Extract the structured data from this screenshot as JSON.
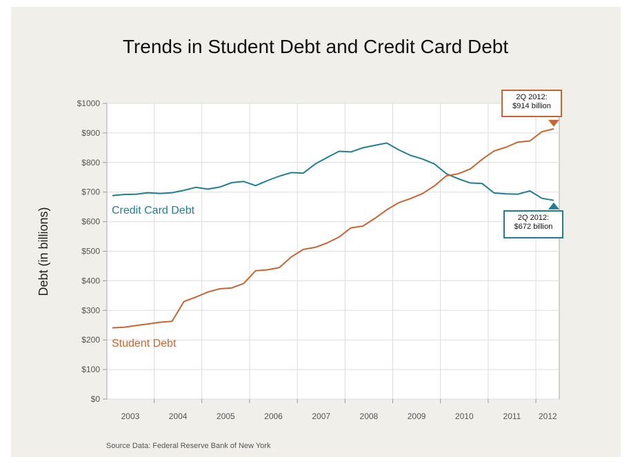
{
  "chart_data": {
    "type": "line",
    "title": "Trends in Student Debt and Credit Card Debt",
    "ylabel": "Debt (in billions)",
    "source": "Source Data: Federal Reserve Bank of New York",
    "ylim": [
      0,
      1000
    ],
    "y_ticks": [
      "$0",
      "$100",
      "$200",
      "$300",
      "$400",
      "$500",
      "$600",
      "$700",
      "$800",
      "$900",
      "$1000"
    ],
    "y_tick_values": [
      0,
      100,
      200,
      300,
      400,
      500,
      600,
      700,
      800,
      900,
      1000
    ],
    "x_ticks": [
      "2003",
      "2004",
      "2005",
      "2006",
      "2007",
      "2008",
      "2009",
      "2010",
      "2011",
      "2012"
    ],
    "grid": true,
    "x": [
      "1Q 2003",
      "2Q 2003",
      "3Q 2003",
      "4Q 2003",
      "1Q 2004",
      "2Q 2004",
      "3Q 2004",
      "4Q 2004",
      "1Q 2005",
      "2Q 2005",
      "3Q 2005",
      "4Q 2005",
      "1Q 2006",
      "2Q 2006",
      "3Q 2006",
      "4Q 2006",
      "1Q 2007",
      "2Q 2007",
      "3Q 2007",
      "4Q 2007",
      "1Q 2008",
      "2Q 2008",
      "3Q 2008",
      "4Q 2008",
      "1Q 2009",
      "2Q 2009",
      "3Q 2009",
      "4Q 2009",
      "1Q 2010",
      "2Q 2010",
      "3Q 2010",
      "4Q 2010",
      "1Q 2011",
      "2Q 2011",
      "3Q 2011",
      "4Q 2011",
      "1Q 2012",
      "2Q 2012"
    ],
    "series": [
      {
        "name": "Credit Card Debt",
        "color": "#1d7e96",
        "values": [
          688,
          692,
          693,
          698,
          695,
          698,
          706,
          716,
          710,
          717,
          732,
          736,
          722,
          739,
          754,
          766,
          764,
          795,
          817,
          838,
          836,
          850,
          858,
          866,
          843,
          824,
          812,
          795,
          762,
          745,
          731,
          729,
          697,
          694,
          693,
          704,
          679,
          672
        ]
      },
      {
        "name": "Student Debt",
        "color": "#c8642f",
        "values": [
          241,
          243,
          249,
          254,
          260,
          263,
          330,
          345,
          362,
          373,
          376,
          391,
          434,
          437,
          445,
          481,
          506,
          513,
          528,
          548,
          579,
          585,
          611,
          640,
          664,
          678,
          695,
          721,
          755,
          762,
          778,
          811,
          839,
          852,
          869,
          873,
          904,
          914
        ]
      }
    ],
    "annotations": [
      {
        "text_line1": "2Q 2012:",
        "text_line2": "$914 billion",
        "series": "Student Debt"
      },
      {
        "text_line1": "2Q 2012:",
        "text_line2": "$672 billion",
        "series": "Credit Card Debt"
      }
    ]
  }
}
